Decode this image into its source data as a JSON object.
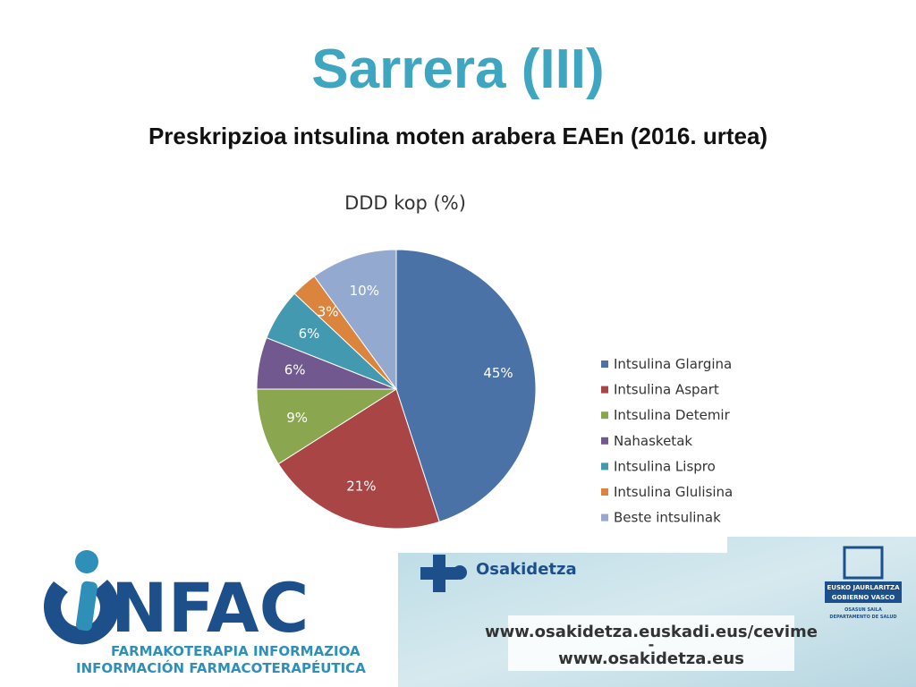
{
  "header": {
    "title": "Sarrera (III)",
    "subtitle": "Preskripzioa intsulina moten arabera EAEn (2016. urtea)"
  },
  "chart_data": {
    "type": "pie",
    "title": "DDD kop (%)",
    "categories": [
      "Intsulina Glargina",
      "Intsulina Aspart",
      "Intsulina Detemir",
      "Nahasketak",
      "Intsulina Lispro",
      "Intsulina Glulisina",
      "Beste intsulinak"
    ],
    "values": [
      45,
      21,
      9,
      6,
      6,
      3,
      10
    ],
    "value_labels": [
      "45%",
      "21%",
      "9%",
      "6%",
      "6%",
      "3%",
      "10%"
    ],
    "colors": [
      "#4a72a6",
      "#a94645",
      "#8aa64f",
      "#71598f",
      "#4299b0",
      "#db843d",
      "#94a9cf"
    ],
    "legend": "right"
  },
  "footer": {
    "logo": "NFAC",
    "logo_line1": "FARMAKOTERAPIA INFORMAZIOA",
    "logo_line2": "INFORMACIÓN FARMACOTERAPÉUTICA",
    "osakidetza": "Osakidetza",
    "url1": "www.osakidetza.euskadi.eus/cevime",
    "separator": "-",
    "url2": "www.osakidetza.eus",
    "gov1": "EUSKO JAURLARITZA",
    "gov2": "GOBIERNO VASCO",
    "gov3": "OSASUN SAILA",
    "gov4": "DEPARTAMENTO DE SALUD"
  }
}
